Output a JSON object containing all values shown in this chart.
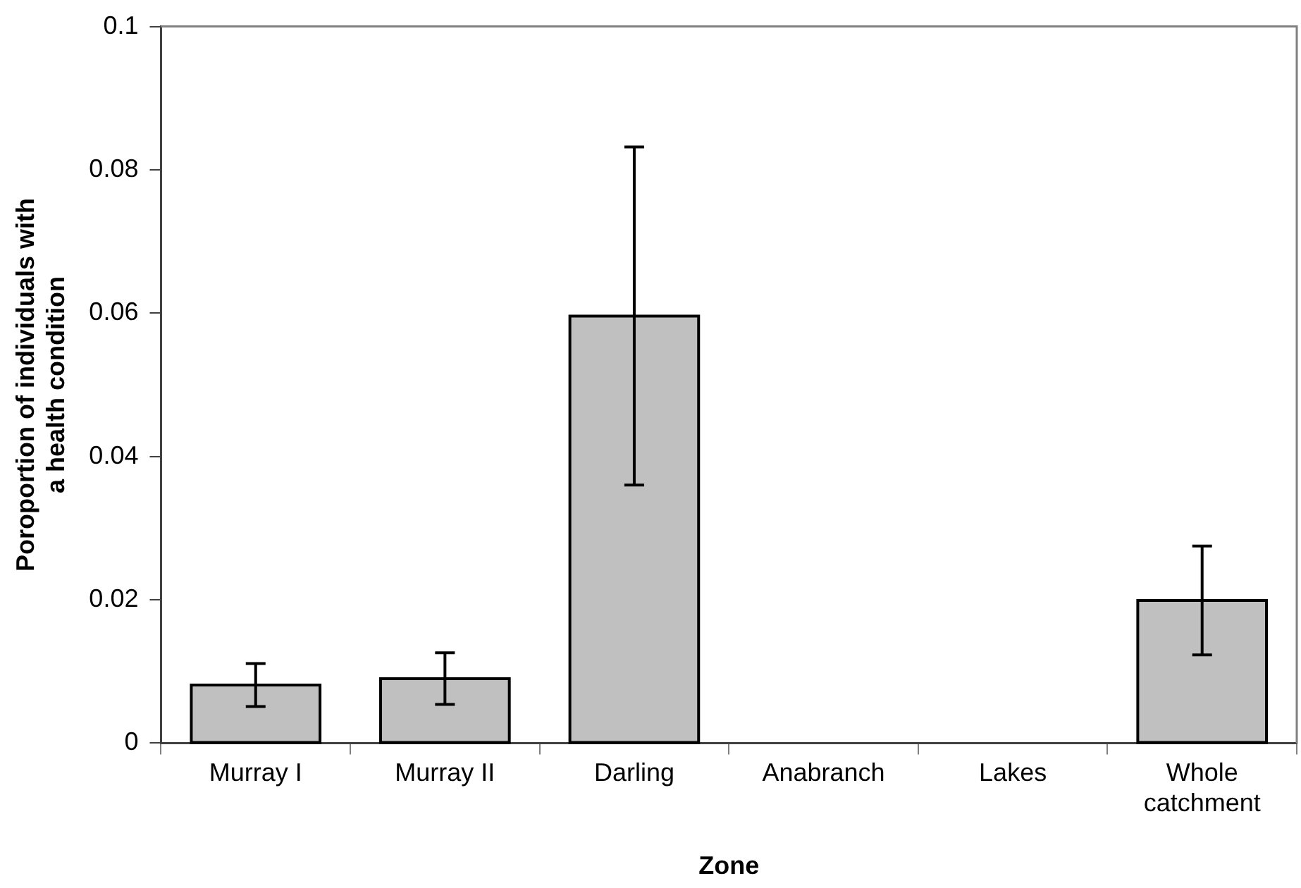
{
  "chart_data": {
    "type": "bar",
    "xlabel": "Zone",
    "ylabel": "Poroportion of individuals with a health condition",
    "categories": [
      "Murray I",
      "Murray II",
      "Darling",
      "Anabranch",
      "Lakes",
      "Whole catchment"
    ],
    "values": [
      0.0081,
      0.009,
      0.0596,
      0,
      0,
      0.0199
    ],
    "errors": [
      [
        0.0051,
        0.0111
      ],
      [
        0.0054,
        0.0126
      ],
      [
        0.036,
        0.0832
      ],
      null,
      null,
      [
        0.0123,
        0.0275
      ]
    ],
    "color": "#c0c0c0",
    "ylim": [
      0,
      0.1
    ],
    "yticks": [
      0,
      0.02,
      0.04,
      0.06,
      0.08,
      0.1
    ],
    "grid": false,
    "legend": false
  }
}
